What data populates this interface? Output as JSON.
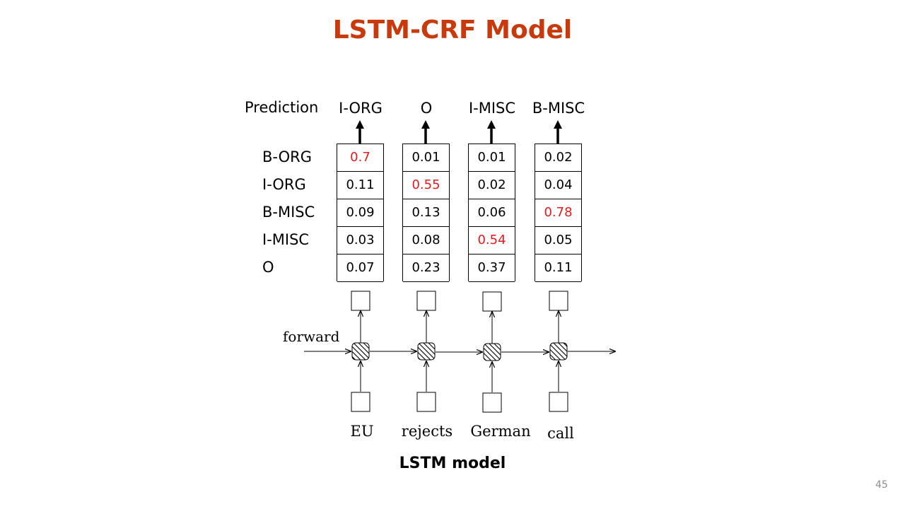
{
  "slide": {
    "title": "LSTM-CRF Model",
    "caption": "LSTM model",
    "page_number": "45"
  },
  "prediction": {
    "label": "Prediction",
    "tags": [
      "I-ORG",
      "O",
      "I-MISC",
      "B-MISC"
    ]
  },
  "row_labels": [
    "B-ORG",
    "I-ORG",
    "B-MISC",
    "I-MISC",
    "O"
  ],
  "scores": [
    {
      "values": [
        "0.7",
        "0.11",
        "0.09",
        "0.03",
        "0.07"
      ],
      "highlight_index": 0
    },
    {
      "values": [
        "0.01",
        "0.55",
        "0.13",
        "0.08",
        "0.23"
      ],
      "highlight_index": 1
    },
    {
      "values": [
        "0.01",
        "0.02",
        "0.06",
        "0.54",
        "0.37"
      ],
      "highlight_index": 3
    },
    {
      "values": [
        "0.02",
        "0.04",
        "0.78",
        "0.05",
        "0.11"
      ],
      "highlight_index": 2
    }
  ],
  "lstm": {
    "direction_label": "forward",
    "words": [
      "EU",
      "rejects",
      "German",
      "call"
    ]
  },
  "colors": {
    "title": "#c8390b",
    "highlight": "#e8191a",
    "page_number": "#8c8c8c"
  }
}
